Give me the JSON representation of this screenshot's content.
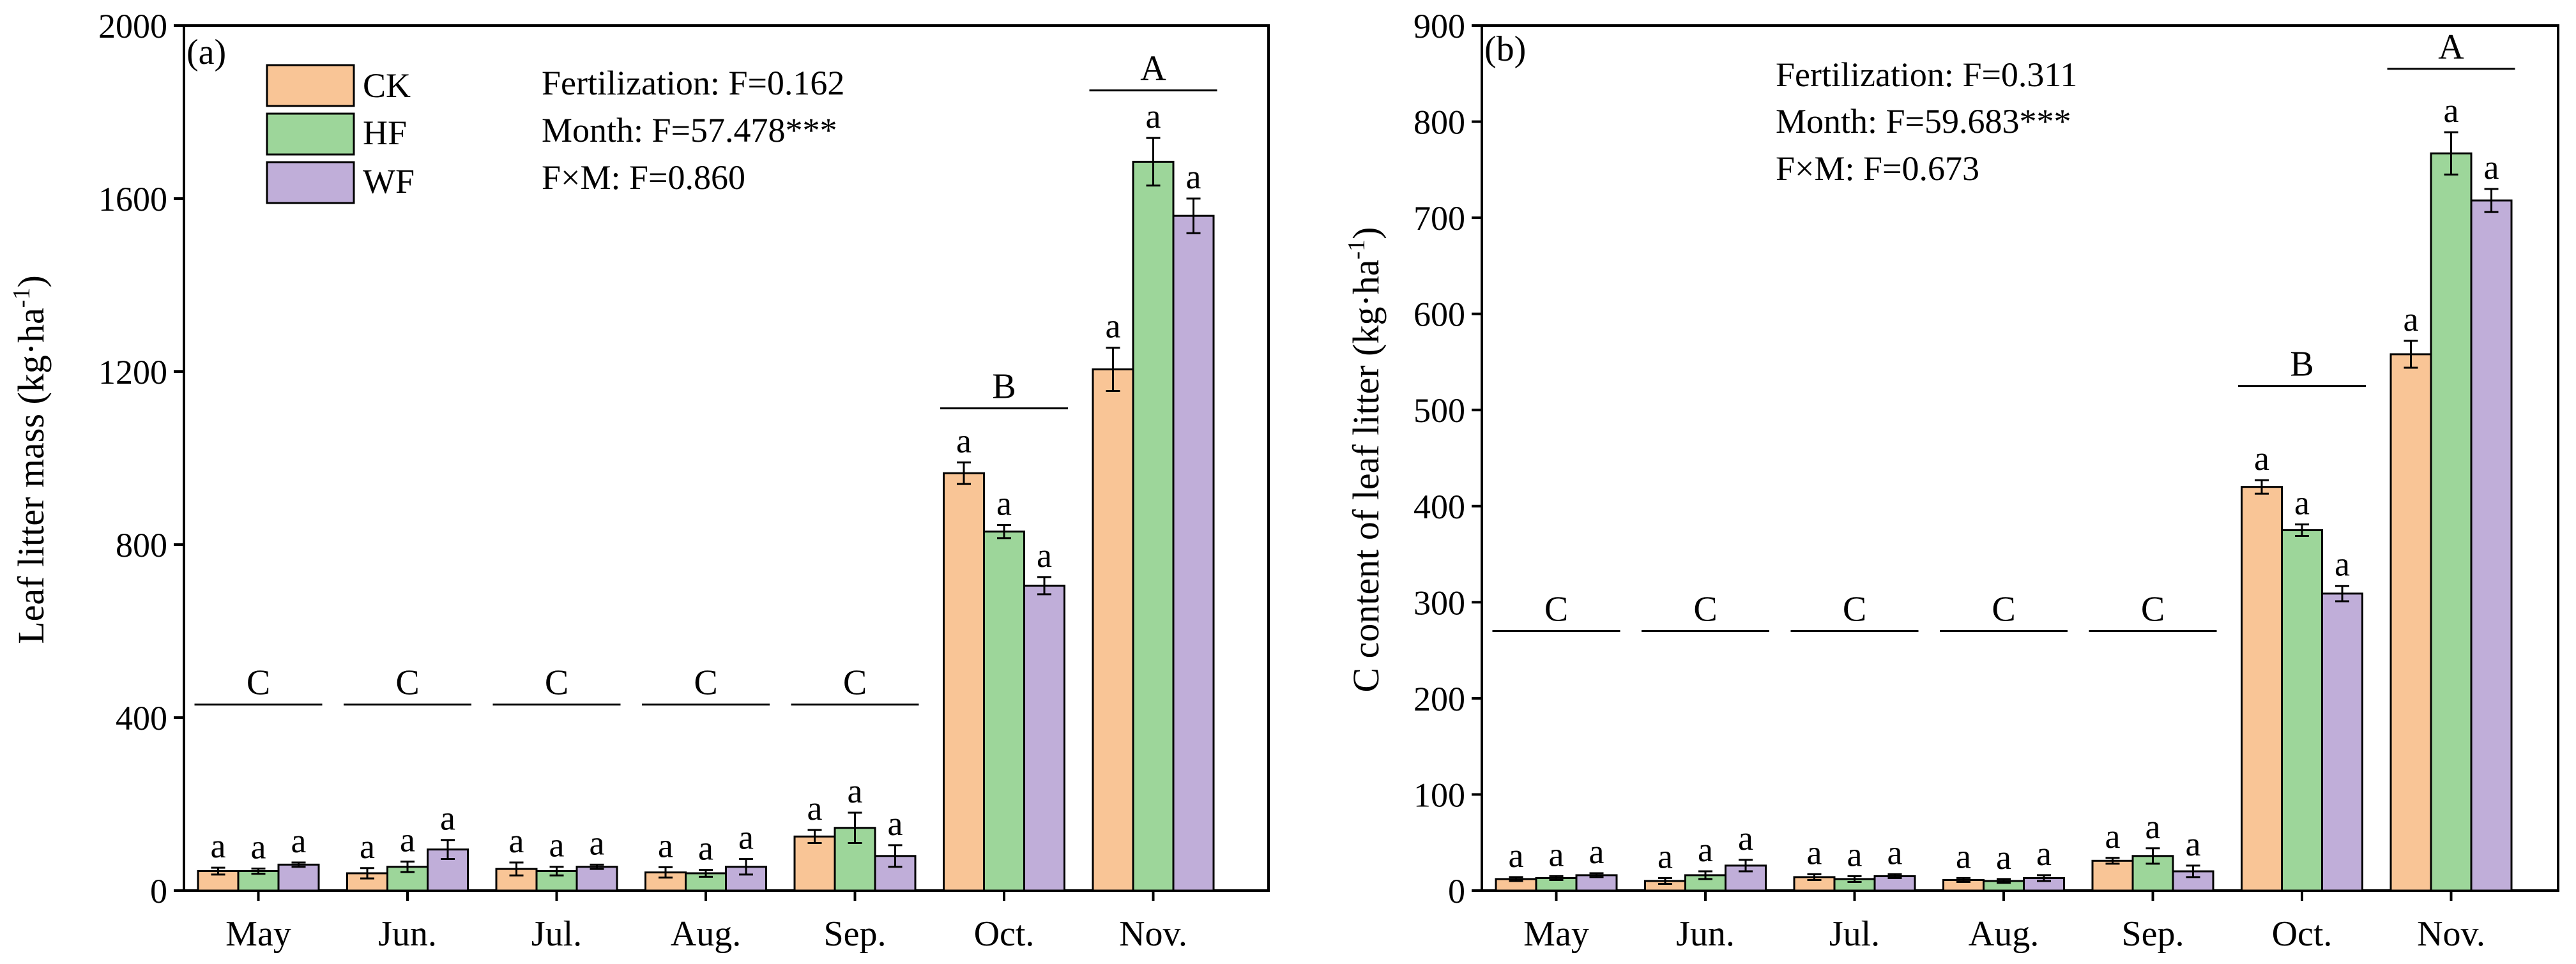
{
  "chart_data": [
    {
      "panel_label": "(a)",
      "type": "bar",
      "ylabel": "Leaf litter mass (kg·ha",
      "ylabel_sup": "-1",
      "ylabel_close": ")",
      "ylim": [
        0,
        2000
      ],
      "yticks": [
        "0",
        "400",
        "800",
        "1200",
        "1600",
        "2000"
      ],
      "ytick_values": [
        0,
        400,
        800,
        1200,
        1600,
        2000
      ],
      "categories": [
        "May",
        "Jun.",
        "Jul.",
        "Aug.",
        "Sep.",
        "Oct.",
        "Nov."
      ],
      "series": [
        {
          "name": "CK",
          "values": [
            45,
            40,
            50,
            42,
            125,
            965,
            1205
          ],
          "errors": [
            8,
            12,
            15,
            12,
            15,
            25,
            50
          ]
        },
        {
          "name": "HF",
          "values": [
            45,
            55,
            45,
            40,
            145,
            830,
            1685
          ],
          "errors": [
            6,
            12,
            10,
            8,
            35,
            15,
            55
          ]
        },
        {
          "name": "WF",
          "values": [
            60,
            95,
            55,
            55,
            80,
            705,
            1560
          ],
          "errors": [
            5,
            22,
            5,
            18,
            25,
            20,
            40
          ]
        }
      ],
      "letters": [
        [
          "a",
          "a",
          "a"
        ],
        [
          "a",
          "a",
          "a"
        ],
        [
          "a",
          "a",
          "a"
        ],
        [
          "a",
          "a",
          "a"
        ],
        [
          "a",
          "a",
          "a"
        ],
        [
          "a",
          "a",
          "a"
        ],
        [
          "a",
          "a",
          "a"
        ]
      ],
      "group_letters": [
        "C",
        "C",
        "C",
        "C",
        "C",
        "B",
        "A"
      ],
      "group_letter_values": [
        430,
        430,
        430,
        430,
        430,
        1115,
        1850
      ],
      "stats": [
        "Fertilization:  F=0.162",
        "Month:   F=57.478***",
        "F×M:  F=0.860"
      ],
      "legend": [
        "CK",
        "HF",
        "WF"
      ],
      "legend_position": "top-left"
    },
    {
      "panel_label": "(b)",
      "type": "bar",
      "ylabel": "C content of leaf litter (kg·ha",
      "ylabel_sup": "-1",
      "ylabel_close": ")",
      "ylim": [
        0,
        900
      ],
      "yticks": [
        "0",
        "100",
        "200",
        "300",
        "400",
        "500",
        "600",
        "700",
        "800",
        "900"
      ],
      "ytick_values": [
        0,
        100,
        200,
        300,
        400,
        500,
        600,
        700,
        800,
        900
      ],
      "categories": [
        "May",
        "Jun.",
        "Jul.",
        "Aug.",
        "Sep.",
        "Oct.",
        "Nov."
      ],
      "series": [
        {
          "name": "CK",
          "values": [
            12,
            10,
            14,
            11,
            31,
            420,
            558
          ],
          "errors": [
            2,
            3,
            3,
            2,
            3,
            7,
            14
          ]
        },
        {
          "name": "HF",
          "values": [
            13,
            16,
            12,
            10,
            36,
            375,
            767
          ],
          "errors": [
            2,
            4,
            3,
            2,
            8,
            6,
            22
          ]
        },
        {
          "name": "WF",
          "values": [
            16,
            26,
            15,
            13,
            20,
            309,
            718
          ],
          "errors": [
            2,
            6,
            2,
            3,
            6,
            8,
            12
          ]
        }
      ],
      "letters": [
        [
          "a",
          "a",
          "a"
        ],
        [
          "a",
          "a",
          "a"
        ],
        [
          "a",
          "a",
          "a"
        ],
        [
          "a",
          "a",
          "a"
        ],
        [
          "a",
          "a",
          "a"
        ],
        [
          "a",
          "a",
          "a"
        ],
        [
          "a",
          "a",
          "a"
        ]
      ],
      "group_letters": [
        "C",
        "C",
        "C",
        "C",
        "C",
        "B",
        "A"
      ],
      "group_letter_values": [
        270,
        270,
        270,
        270,
        270,
        525,
        855
      ],
      "stats": [
        "Fertilization:  F=0.311",
        "Month:    F=59.683***",
        "F×M:  F=0.673"
      ],
      "legend": [],
      "legend_position": "none"
    }
  ],
  "colors": {
    "CK": "#f9c596",
    "HF": "#9dd69a",
    "WF": "#c0aed9"
  }
}
